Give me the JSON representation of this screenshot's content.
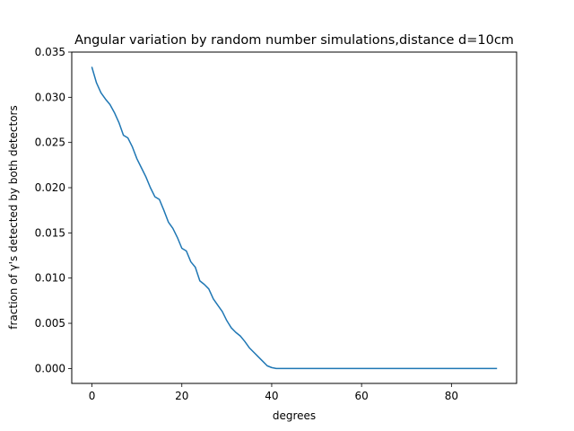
{
  "chart_data": {
    "type": "line",
    "title": "Angular variation by random number simulations,distance d=10cm",
    "xlabel": "degrees",
    "ylabel": "fraction of γ's detected by both detectors",
    "xlim": [
      -4.5,
      94.5
    ],
    "ylim": [
      -0.00165,
      0.035
    ],
    "x_ticks": [
      0,
      20,
      40,
      60,
      80
    ],
    "x_tick_labels": [
      "0",
      "20",
      "40",
      "60",
      "80"
    ],
    "y_ticks": [
      0.0,
      0.005,
      0.01,
      0.015,
      0.02,
      0.025,
      0.03,
      0.035
    ],
    "y_tick_labels": [
      "0.000",
      "0.005",
      "0.010",
      "0.015",
      "0.020",
      "0.025",
      "0.030",
      "0.035"
    ],
    "grid": false,
    "legend": "none",
    "series": [
      {
        "color": "#1f77b4",
        "x": [
          0,
          1,
          2,
          3,
          4,
          5,
          6,
          7,
          8,
          9,
          10,
          11,
          12,
          13,
          14,
          15,
          16,
          17,
          18,
          19,
          20,
          21,
          22,
          23,
          24,
          25,
          26,
          27,
          28,
          29,
          30,
          31,
          32,
          33,
          34,
          35,
          36,
          37,
          38,
          39,
          40,
          41,
          42,
          43,
          44,
          45,
          50,
          60,
          70,
          80,
          90
        ],
        "y": [
          0.0333,
          0.0316,
          0.0305,
          0.0298,
          0.0292,
          0.0283,
          0.0272,
          0.0258,
          0.0255,
          0.0245,
          0.0232,
          0.0222,
          0.0212,
          0.02,
          0.019,
          0.0187,
          0.0175,
          0.0162,
          0.0155,
          0.0145,
          0.0133,
          0.013,
          0.0118,
          0.0112,
          0.0097,
          0.0093,
          0.0088,
          0.0077,
          0.007,
          0.0063,
          0.0053,
          0.0045,
          0.004,
          0.0036,
          0.003,
          0.0023,
          0.0018,
          0.0013,
          0.0008,
          0.0003,
          0.0001,
          0.0,
          0.0,
          0.0,
          0.0,
          0.0,
          0.0,
          0.0,
          0.0,
          0.0,
          0.0
        ]
      }
    ]
  }
}
